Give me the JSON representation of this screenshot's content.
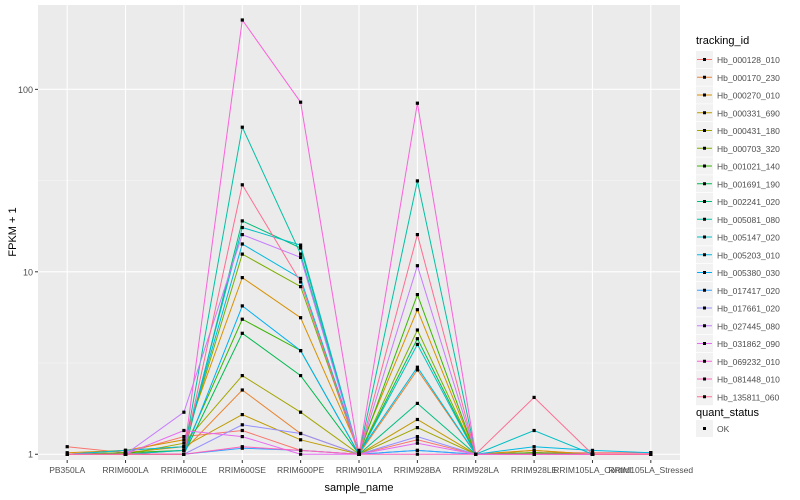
{
  "chart_data": {
    "type": "line",
    "xlabel": "sample_name",
    "ylabel": "FPKM + 1",
    "yscale": "log10",
    "ylim": [
      0.93,
      290
    ],
    "yticks": [
      1,
      10,
      100
    ],
    "ytick_labels": [
      "1",
      "10",
      "100"
    ],
    "categories": [
      "PB350LA",
      "RRIM600LA",
      "RRIM600LE",
      "RRIM600SE",
      "RRIM600PE",
      "RRIM901LA",
      "RRIM928BA",
      "RRIM928LA",
      "RRIM928LE",
      "RRIM105LA_Control",
      "RRIM105LA_Stressed"
    ],
    "legend_title": "tracking_id",
    "series": [
      {
        "name": "Hb_000128_010",
        "color": "#F8766D",
        "values": [
          1.1,
          1.02,
          1.25,
          1.35,
          1.05,
          1.0,
          1.2,
          1.0,
          1.02,
          1.02,
          1.02
        ]
      },
      {
        "name": "Hb_000170_230",
        "color": "#EA8331",
        "values": [
          1.0,
          1.0,
          1.05,
          2.25,
          1.3,
          1.0,
          2.9,
          1.0,
          1.05,
          1.0,
          1.0
        ]
      },
      {
        "name": "Hb_000270_010",
        "color": "#D89000",
        "values": [
          1.02,
          1.05,
          1.2,
          9.3,
          5.6,
          1.05,
          6.2,
          1.0,
          1.05,
          1.0,
          1.0
        ]
      },
      {
        "name": "Hb_000331_690",
        "color": "#C09B00",
        "values": [
          1.0,
          1.02,
          1.1,
          1.65,
          1.2,
          1.0,
          1.55,
          1.0,
          1.02,
          1.0,
          1.0
        ]
      },
      {
        "name": "Hb_000431_180",
        "color": "#A3A500",
        "values": [
          1.0,
          1.0,
          1.15,
          2.7,
          1.7,
          1.0,
          1.4,
          1.0,
          1.0,
          1.0,
          1.0
        ]
      },
      {
        "name": "Hb_000703_320",
        "color": "#7CAE00",
        "values": [
          1.0,
          1.05,
          1.1,
          12.5,
          8.3,
          1.0,
          4.8,
          1.0,
          1.02,
          1.0,
          1.0
        ]
      },
      {
        "name": "Hb_001021_140",
        "color": "#39B600",
        "values": [
          1.0,
          1.02,
          1.05,
          5.5,
          3.7,
          1.0,
          7.5,
          1.0,
          1.02,
          1.0,
          1.0
        ]
      },
      {
        "name": "Hb_001691_190",
        "color": "#00BB4E",
        "values": [
          1.0,
          1.0,
          1.0,
          4.6,
          2.7,
          1.0,
          4.3,
          1.0,
          1.0,
          1.0,
          1.0
        ]
      },
      {
        "name": "Hb_002241_020",
        "color": "#00BF7D",
        "values": [
          1.0,
          1.0,
          1.0,
          19.0,
          13.5,
          1.0,
          1.9,
          1.0,
          1.0,
          1.0,
          1.0
        ]
      },
      {
        "name": "Hb_005081_080",
        "color": "#00C1A3",
        "values": [
          1.0,
          1.0,
          1.0,
          62.0,
          12.5,
          1.0,
          31.5,
          1.0,
          1.0,
          1.0,
          1.0
        ]
      },
      {
        "name": "Hb_005147_020",
        "color": "#00BFC4",
        "values": [
          1.0,
          1.0,
          1.05,
          17.5,
          14.0,
          1.0,
          4.0,
          1.0,
          1.35,
          1.0,
          1.0
        ]
      },
      {
        "name": "Hb_005203_010",
        "color": "#00BAE0",
        "values": [
          1.0,
          1.05,
          1.1,
          14.2,
          9.2,
          1.02,
          3.0,
          1.0,
          1.1,
          1.05,
          1.02
        ]
      },
      {
        "name": "Hb_005380_030",
        "color": "#00B0F6",
        "values": [
          1.0,
          1.0,
          1.0,
          6.5,
          3.7,
          1.0,
          1.05,
          1.0,
          1.0,
          1.0,
          1.0
        ]
      },
      {
        "name": "Hb_017417_020",
        "color": "#35A2FF",
        "values": [
          1.0,
          1.0,
          1.0,
          1.08,
          1.05,
          1.0,
          1.05,
          1.0,
          1.0,
          1.0,
          1.0
        ]
      },
      {
        "name": "Hb_017661_020",
        "color": "#9590FF",
        "values": [
          1.0,
          1.0,
          1.0,
          1.45,
          1.3,
          1.0,
          1.25,
          1.0,
          1.0,
          1.0,
          1.0
        ]
      },
      {
        "name": "Hb_027445_080",
        "color": "#C77CFF",
        "values": [
          1.0,
          1.0,
          1.7,
          16.0,
          12.0,
          1.0,
          10.8,
          1.0,
          1.0,
          1.0,
          1.0
        ]
      },
      {
        "name": "Hb_031862_090",
        "color": "#E76BF3",
        "values": [
          1.0,
          1.0,
          1.35,
          1.25,
          1.0,
          1.0,
          1.15,
          1.0,
          1.0,
          1.0,
          1.0
        ]
      },
      {
        "name": "Hb_069232_010",
        "color": "#FA62DB",
        "values": [
          1.0,
          1.0,
          1.0,
          240.0,
          85.0,
          1.0,
          84.0,
          1.0,
          1.0,
          1.0,
          1.0
        ]
      },
      {
        "name": "Hb_081448_010",
        "color": "#FF62BC",
        "values": [
          1.0,
          1.0,
          1.0,
          1.1,
          1.05,
          1.0,
          1.0,
          1.0,
          1.0,
          1.0,
          1.0
        ]
      },
      {
        "name": "Hb_135811_060",
        "color": "#FF6C91",
        "values": [
          1.0,
          1.0,
          1.0,
          30.0,
          8.8,
          1.0,
          16.0,
          1.0,
          2.05,
          1.0,
          1.0
        ]
      }
    ],
    "shape_legend_title": "quant_status",
    "shape_legend_entries": [
      "OK"
    ]
  }
}
